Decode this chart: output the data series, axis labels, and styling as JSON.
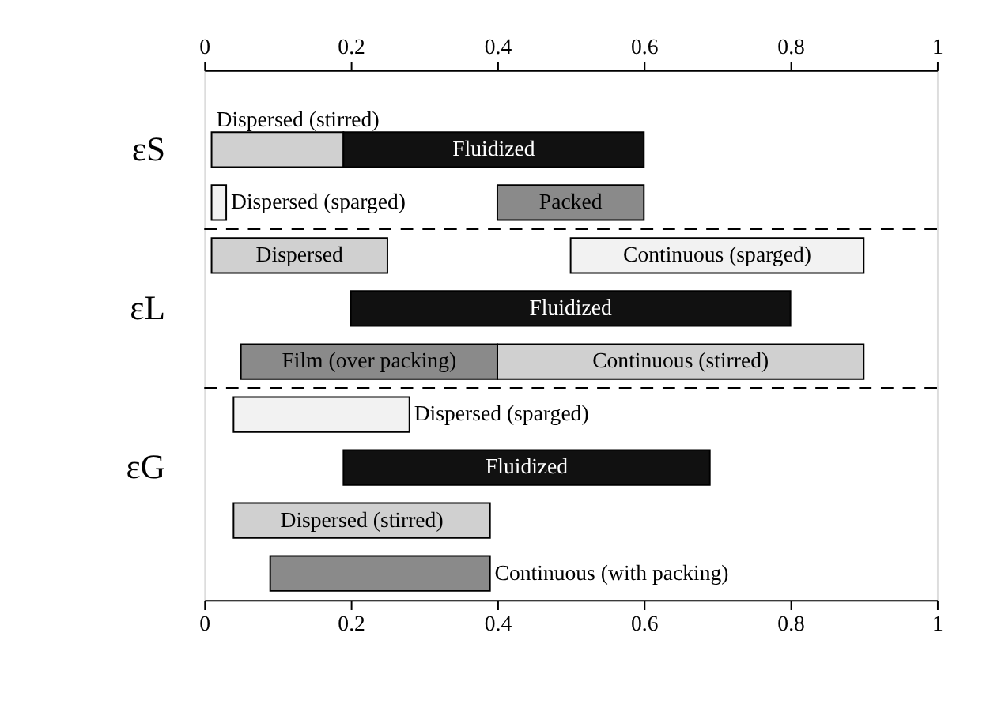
{
  "chart_data": {
    "type": "bar",
    "orientation": "horizontal",
    "categories": [
      null,
      "εS",
      null,
      null,
      "εL",
      null,
      null,
      "εG",
      null,
      null
    ],
    "series": [
      {
        "color": "#d0d0d0",
        "base": [
          null,
          0.01,
          null,
          0.01,
          null,
          0.4,
          null,
          null,
          0.04,
          null
        ],
        "values": [
          null,
          0.18,
          null,
          0.24,
          null,
          0.5,
          null,
          null,
          0.35,
          null
        ],
        "value_labels": [
          null,
          "Dispersed (stirred)",
          null,
          "Dispersed",
          null,
          "Continuous (stirred)",
          null,
          null,
          "Dispersed (stirred)",
          null
        ]
      },
      {
        "color": "#111111",
        "base": [
          null,
          0.19,
          null,
          null,
          0.2,
          null,
          null,
          0.19,
          null,
          null
        ],
        "values": [
          null,
          0.41,
          null,
          null,
          0.6,
          null,
          null,
          0.5,
          null,
          null
        ],
        "value_labels": [
          null,
          "Fluidized",
          null,
          null,
          "Fluidized",
          null,
          null,
          "Fluidized",
          null,
          null
        ]
      },
      {
        "color": "#8a8a8a",
        "base": [
          null,
          null,
          0.4,
          null,
          null,
          0.05,
          null,
          null,
          null,
          0.09
        ],
        "values": [
          null,
          null,
          0.2,
          null,
          null,
          0.35,
          null,
          null,
          null,
          0.3
        ],
        "value_labels": [
          null,
          null,
          "Packed",
          null,
          null,
          "Film (over packing)",
          null,
          null,
          null,
          "Continuous (with packing)"
        ]
      },
      {
        "color": "#f2f2f2",
        "base": [
          null,
          null,
          0.01,
          0.5,
          null,
          null,
          0.04,
          null,
          null,
          null
        ],
        "values": [
          null,
          null,
          0.02,
          0.4,
          null,
          null,
          0.24,
          null,
          null,
          null
        ],
        "value_labels": [
          null,
          null,
          "Dispersed (sparged)",
          "Continuous (sparged)",
          null,
          null,
          "Dispersed (sparged)",
          null,
          null,
          null
        ]
      }
    ],
    "xlim": [
      0,
      1
    ],
    "xticks": [
      0,
      0.2,
      0.4,
      0.6,
      0.8,
      1
    ],
    "x2lim": [
      0,
      1
    ],
    "x2ticks": [
      0,
      0.2,
      0.4,
      0.6,
      0.8,
      1
    ],
    "grid": false
  }
}
